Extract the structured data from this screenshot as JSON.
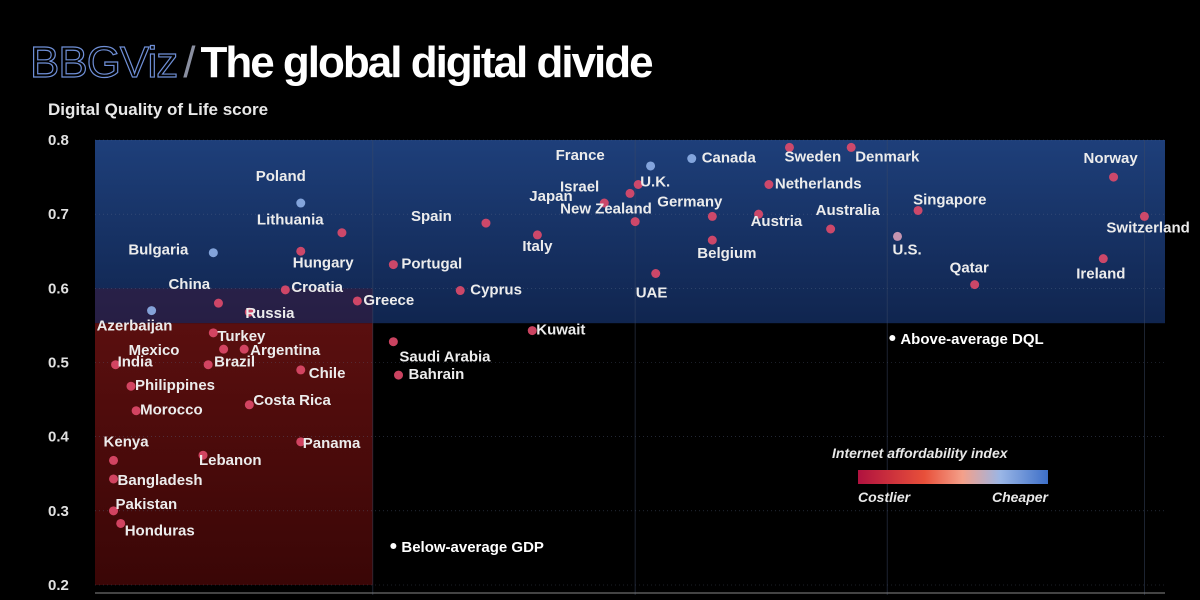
{
  "header": {
    "brand": "BBGViz",
    "separator": "/",
    "title": "The global digital divide"
  },
  "chart_data": {
    "type": "scatter",
    "ylabel": "Digital Quality of Life score",
    "ylim": [
      0.2,
      0.8
    ],
    "yticks": [
      "0.8",
      "0.7",
      "0.6",
      "0.5",
      "0.4",
      "0.3",
      "0.2"
    ],
    "zones": {
      "above_dql": "Above-average DQL",
      "below_gdp": "Below-average GDP"
    },
    "legend": {
      "title": "Internet affordability index",
      "low": "Costlier",
      "high": "Cheaper"
    },
    "points": [
      {
        "name": "France",
        "x": 0.64,
        "y": 0.765,
        "afford": 0.85
      },
      {
        "name": "Canada",
        "x": 0.68,
        "y": 0.775,
        "afford": 0.8
      },
      {
        "name": "Sweden",
        "x": 0.775,
        "y": 0.79,
        "afford": 0.3
      },
      {
        "name": "Denmark",
        "x": 0.835,
        "y": 0.79,
        "afford": 0.3
      },
      {
        "name": "Norway",
        "x": 1.09,
        "y": 0.75,
        "afford": 0.25
      },
      {
        "name": "Israel",
        "x": 0.62,
        "y": 0.728,
        "afford": 0.3
      },
      {
        "name": "U.K.",
        "x": 0.628,
        "y": 0.74,
        "afford": 0.3
      },
      {
        "name": "Netherlands",
        "x": 0.755,
        "y": 0.74,
        "afford": 0.25
      },
      {
        "name": "Japan",
        "x": 0.595,
        "y": 0.715,
        "afford": 0.3
      },
      {
        "name": "Germany",
        "x": 0.7,
        "y": 0.697,
        "afford": 0.35
      },
      {
        "name": "Singapore",
        "x": 0.9,
        "y": 0.705,
        "afford": 0.3
      },
      {
        "name": "Australia",
        "x": 0.815,
        "y": 0.68,
        "afford": 0.3
      },
      {
        "name": "Austria",
        "x": 0.745,
        "y": 0.7,
        "afford": 0.3
      },
      {
        "name": "Switzerland",
        "x": 1.12,
        "y": 0.697,
        "afford": 0.3
      },
      {
        "name": "Poland",
        "x": 0.3,
        "y": 0.715,
        "afford": 0.85
      },
      {
        "name": "Lithuania",
        "x": 0.34,
        "y": 0.675,
        "afford": 0.3
      },
      {
        "name": "Spain",
        "x": 0.48,
        "y": 0.688,
        "afford": 0.3
      },
      {
        "name": "New Zealand",
        "x": 0.625,
        "y": 0.69,
        "afford": 0.3
      },
      {
        "name": "Italy",
        "x": 0.53,
        "y": 0.672,
        "afford": 0.3
      },
      {
        "name": "Belgium",
        "x": 0.7,
        "y": 0.665,
        "afford": 0.35
      },
      {
        "name": "U.S.",
        "x": 0.88,
        "y": 0.67,
        "afford": 0.55
      },
      {
        "name": "Bulgaria",
        "x": 0.215,
        "y": 0.648,
        "afford": 0.7
      },
      {
        "name": "Hungary",
        "x": 0.3,
        "y": 0.65,
        "afford": 0.3
      },
      {
        "name": "Portugal",
        "x": 0.39,
        "y": 0.632,
        "afford": 0.3
      },
      {
        "name": "Qatar",
        "x": 0.955,
        "y": 0.605,
        "afford": 0.25
      },
      {
        "name": "Ireland",
        "x": 1.08,
        "y": 0.64,
        "afford": 0.3
      },
      {
        "name": "UAE",
        "x": 0.645,
        "y": 0.62,
        "afford": 0.25
      },
      {
        "name": "China",
        "x": 0.22,
        "y": 0.58,
        "afford": 0.3
      },
      {
        "name": "Croatia",
        "x": 0.285,
        "y": 0.598,
        "afford": 0.3
      },
      {
        "name": "Cyprus",
        "x": 0.455,
        "y": 0.597,
        "afford": 0.3
      },
      {
        "name": "Greece",
        "x": 0.355,
        "y": 0.583,
        "afford": 0.3
      },
      {
        "name": "Russia",
        "x": 0.25,
        "y": 0.568,
        "afford": 0.3
      },
      {
        "name": "Azerbaijan",
        "x": 0.155,
        "y": 0.57,
        "afford": 0.85
      },
      {
        "name": "Turkey",
        "x": 0.215,
        "y": 0.54,
        "afford": 0.3
      },
      {
        "name": "Kuwait",
        "x": 0.525,
        "y": 0.543,
        "afford": 0.3
      },
      {
        "name": "Saudi Arabia",
        "x": 0.39,
        "y": 0.528,
        "afford": 0.3
      },
      {
        "name": "Mexico",
        "x": 0.225,
        "y": 0.518,
        "afford": 0.3
      },
      {
        "name": "Argentina",
        "x": 0.245,
        "y": 0.518,
        "afford": 0.3
      },
      {
        "name": "India",
        "x": 0.12,
        "y": 0.497,
        "afford": 0.3
      },
      {
        "name": "Brazil",
        "x": 0.21,
        "y": 0.497,
        "afford": 0.3
      },
      {
        "name": "Chile",
        "x": 0.3,
        "y": 0.49,
        "afford": 0.3
      },
      {
        "name": "Bahrain",
        "x": 0.395,
        "y": 0.483,
        "afford": 0.3
      },
      {
        "name": "Philippines",
        "x": 0.135,
        "y": 0.468,
        "afford": 0.3
      },
      {
        "name": "Costa Rica",
        "x": 0.25,
        "y": 0.443,
        "afford": 0.3
      },
      {
        "name": "Morocco",
        "x": 0.14,
        "y": 0.435,
        "afford": 0.3
      },
      {
        "name": "Panama",
        "x": 0.3,
        "y": 0.393,
        "afford": 0.3
      },
      {
        "name": "Kenya",
        "x": 0.118,
        "y": 0.368,
        "afford": 0.25
      },
      {
        "name": "Lebanon",
        "x": 0.205,
        "y": 0.375,
        "afford": 0.3
      },
      {
        "name": "Bangladesh",
        "x": 0.118,
        "y": 0.343,
        "afford": 0.3
      },
      {
        "name": "Pakistan",
        "x": 0.118,
        "y": 0.3,
        "afford": 0.3
      },
      {
        "name": "Honduras",
        "x": 0.125,
        "y": 0.283,
        "afford": 0.3
      }
    ]
  }
}
